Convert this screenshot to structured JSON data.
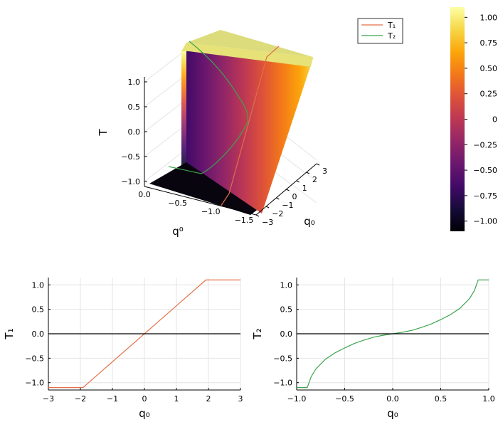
{
  "colors": {
    "t1": "#e26f46",
    "t2": "#3da44d",
    "zero_line": "#000000"
  },
  "colormap": "inferno",
  "chart_data": [
    {
      "type": "surface",
      "x_label": "q⁰",
      "y_label": "q₀",
      "z_label": "T",
      "x_range": [
        -1.5,
        0.0
      ],
      "y_range": [
        -3,
        3
      ],
      "z_range": [
        -1.1,
        1.1
      ],
      "x_ticks": [
        0.0,
        -0.5,
        -1.0,
        -1.5
      ],
      "x_tick_labels": [
        "0.0",
        "−0.5",
        "−1.0",
        "−1.5"
      ],
      "y_ticks": [
        -3,
        -2,
        -1,
        0,
        1,
        2,
        3
      ],
      "y_tick_labels": [
        "−3",
        "−2",
        "−1",
        "0",
        "1",
        "2",
        "3"
      ],
      "z_ticks": [
        -1.0,
        -0.5,
        0.0,
        0.5,
        1.0
      ],
      "z_tick_labels": [
        "−1.0",
        "−0.5",
        "0.0",
        "0.5",
        "1.0"
      ],
      "legend": [
        {
          "name": "T₁",
          "color": "#e26f46"
        },
        {
          "name": "T₂",
          "color": "#3da44d"
        }
      ],
      "legend_position": "top-right",
      "colorbar": {
        "range": [
          -1.1,
          1.1
        ],
        "ticks": [
          -1.0,
          -0.75,
          -0.5,
          -0.25,
          0,
          0.25,
          0.5,
          0.75,
          1.0
        ],
        "tick_labels": [
          "−1.00",
          "−0.75",
          "−0.50",
          "−0.25",
          "0",
          "0.25",
          "0.50",
          "0.75",
          "1.00"
        ]
      }
    },
    {
      "type": "line",
      "x_label": "q₀",
      "y_label": "T₁",
      "xlim": [
        -3,
        3
      ],
      "ylim": [
        -1.15,
        1.15
      ],
      "x_ticks": [
        -3,
        -2,
        -1,
        0,
        1,
        2,
        3
      ],
      "x_tick_labels": [
        "−3",
        "−2",
        "−1",
        "0",
        "1",
        "2",
        "3"
      ],
      "y_ticks": [
        -1.0,
        -0.5,
        0.0,
        0.5,
        1.0
      ],
      "y_tick_labels": [
        "−1.0",
        "−0.5",
        "0.0",
        "0.5",
        "1.0"
      ],
      "grid": true,
      "series": [
        {
          "color": "#e26f46",
          "x": [
            -3,
            -1.92,
            1.92,
            3
          ],
          "y": [
            -1.1,
            -1.1,
            1.1,
            1.1
          ]
        },
        {
          "color": "#000000",
          "x": [
            -3,
            3
          ],
          "y": [
            0,
            0
          ]
        }
      ]
    },
    {
      "type": "line",
      "x_label": "q₀",
      "y_label": "T₂",
      "xlim": [
        -1,
        1
      ],
      "ylim": [
        -1.15,
        1.15
      ],
      "x_ticks": [
        -1.0,
        -0.5,
        0.0,
        0.5,
        1.0
      ],
      "x_tick_labels": [
        "−1.0",
        "−0.5",
        "0.0",
        "0.5",
        "1.0"
      ],
      "y_ticks": [
        -1.0,
        -0.5,
        0.0,
        0.5,
        1.0
      ],
      "y_tick_labels": [
        "−1.0",
        "−0.5",
        "0.0",
        "0.5",
        "1.0"
      ],
      "grid": true,
      "series": [
        {
          "color": "#3da44d",
          "x": [
            -1.0,
            -0.89,
            -0.85,
            -0.8,
            -0.7,
            -0.6,
            -0.5,
            -0.4,
            -0.3,
            -0.2,
            -0.1,
            0.0,
            0.1,
            0.2,
            0.3,
            0.4,
            0.5,
            0.6,
            0.7,
            0.8,
            0.85,
            0.89,
            1.0
          ],
          "y": [
            -1.1,
            -1.1,
            -0.88,
            -0.72,
            -0.52,
            -0.39,
            -0.29,
            -0.2,
            -0.13,
            -0.07,
            -0.03,
            0.0,
            0.03,
            0.07,
            0.13,
            0.2,
            0.29,
            0.39,
            0.52,
            0.72,
            0.88,
            1.1,
            1.1
          ]
        },
        {
          "color": "#000000",
          "x": [
            -1,
            1
          ],
          "y": [
            0,
            0
          ]
        }
      ]
    }
  ]
}
